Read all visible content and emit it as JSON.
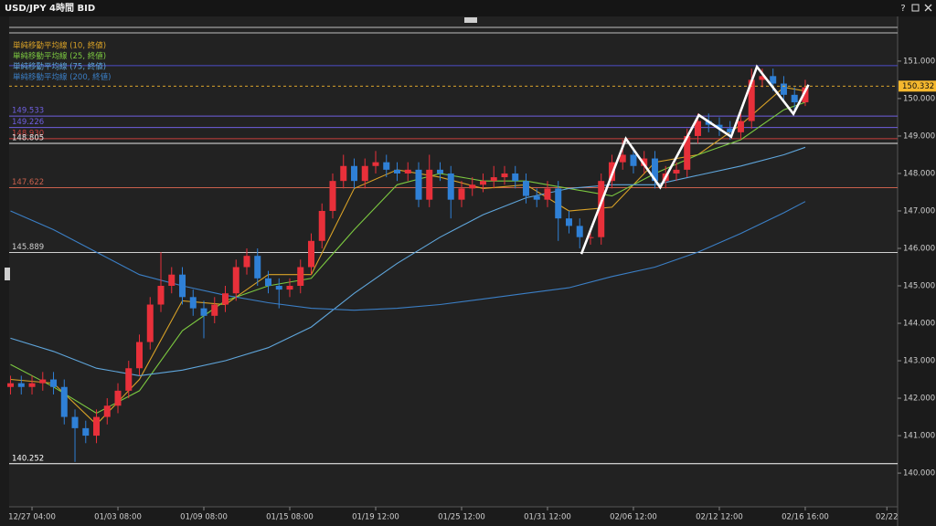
{
  "chart_data": {
    "type": "candlestick",
    "title": "USD/JPY 4時間 BID",
    "help": "?",
    "x": [
      0,
      1,
      2,
      3,
      4,
      5,
      6,
      7,
      8,
      9,
      10,
      11,
      12,
      13,
      14,
      15,
      16,
      17,
      18,
      19,
      20,
      21,
      22,
      23,
      24,
      25,
      26,
      27,
      28,
      29,
      30,
      31,
      32,
      33,
      34,
      35,
      36,
      37,
      38,
      39,
      40,
      41,
      42,
      43,
      44,
      45,
      46,
      47,
      48,
      49,
      50,
      51,
      52,
      53,
      54,
      55,
      56,
      57,
      58,
      59,
      60,
      61,
      62,
      63,
      64,
      65,
      66,
      67,
      68,
      69,
      70,
      71,
      72,
      73,
      74
    ],
    "open": [
      142.3,
      142.4,
      142.3,
      142.4,
      142.5,
      142.3,
      141.5,
      141.2,
      141.0,
      141.5,
      141.8,
      142.2,
      142.8,
      143.5,
      144.5,
      145.0,
      145.3,
      144.7,
      144.4,
      144.2,
      144.5,
      144.8,
      145.5,
      145.8,
      145.2,
      145.0,
      144.9,
      145.0,
      145.5,
      146.2,
      147.0,
      147.8,
      148.2,
      147.8,
      148.2,
      148.3,
      148.1,
      148.0,
      148.1,
      147.3,
      148.1,
      148.0,
      147.3,
      147.6,
      147.7,
      147.8,
      147.9,
      148.0,
      147.8,
      147.4,
      147.3,
      147.6,
      146.8,
      146.6,
      146.3,
      146.3,
      147.8,
      148.3,
      148.5,
      148.2,
      148.4,
      147.8,
      148.0,
      148.1,
      149.0,
      149.4,
      149.3,
      149.2,
      149.1,
      149.4,
      150.5,
      150.6,
      150.4,
      150.1,
      149.9
    ],
    "high": [
      142.6,
      142.6,
      142.6,
      142.7,
      142.7,
      142.5,
      141.7,
      141.4,
      141.7,
      142.0,
      142.4,
      143.0,
      143.7,
      144.7,
      145.9,
      145.5,
      145.5,
      144.9,
      144.6,
      144.7,
      145.0,
      145.7,
      146.0,
      146.0,
      145.4,
      145.2,
      145.2,
      145.7,
      146.4,
      147.2,
      148.0,
      148.5,
      148.4,
      148.4,
      148.6,
      148.5,
      148.3,
      148.3,
      148.3,
      148.5,
      148.3,
      148.2,
      147.8,
      147.9,
      148.0,
      148.2,
      148.2,
      148.2,
      148.0,
      147.6,
      147.8,
      147.8,
      147.0,
      146.8,
      146.5,
      148.0,
      148.5,
      148.9,
      148.7,
      148.6,
      148.6,
      148.2,
      148.3,
      149.2,
      149.6,
      149.6,
      149.5,
      149.4,
      149.6,
      150.8,
      150.8,
      150.8,
      150.6,
      150.3,
      150.5
    ],
    "low": [
      142.1,
      142.1,
      142.1,
      142.2,
      142.1,
      141.3,
      140.3,
      140.8,
      140.8,
      141.3,
      141.6,
      142.0,
      142.6,
      143.3,
      144.3,
      144.8,
      144.5,
      144.2,
      143.6,
      144.0,
      144.3,
      144.6,
      145.3,
      145.0,
      144.8,
      144.4,
      144.7,
      144.8,
      145.3,
      146.0,
      146.8,
      147.6,
      147.6,
      147.6,
      148.0,
      147.9,
      147.8,
      147.8,
      147.1,
      147.1,
      147.8,
      146.8,
      147.1,
      147.4,
      147.5,
      147.6,
      147.7,
      147.6,
      147.2,
      147.1,
      147.1,
      146.2,
      146.4,
      146.0,
      146.1,
      146.1,
      147.6,
      148.1,
      148.0,
      148.0,
      147.6,
      147.6,
      147.8,
      147.9,
      148.8,
      149.1,
      149.0,
      148.9,
      148.9,
      149.2,
      150.3,
      150.2,
      149.9,
      149.7,
      149.8
    ],
    "close": [
      142.4,
      142.3,
      142.4,
      142.5,
      142.3,
      141.5,
      141.2,
      141.0,
      141.5,
      141.8,
      142.2,
      142.8,
      143.5,
      144.5,
      145.0,
      145.3,
      144.7,
      144.4,
      144.2,
      144.5,
      144.8,
      145.5,
      145.8,
      145.2,
      145.0,
      144.9,
      145.0,
      145.5,
      146.2,
      147.0,
      147.8,
      148.2,
      147.8,
      148.2,
      148.3,
      148.1,
      148.0,
      148.1,
      147.3,
      148.1,
      148.0,
      147.3,
      147.6,
      147.7,
      147.8,
      147.9,
      148.0,
      147.8,
      147.4,
      147.3,
      147.6,
      146.8,
      146.6,
      146.3,
      146.3,
      147.8,
      148.3,
      148.5,
      148.2,
      148.4,
      147.8,
      148.0,
      148.1,
      149.0,
      149.4,
      149.3,
      149.2,
      149.1,
      149.4,
      150.5,
      150.6,
      150.4,
      150.1,
      149.9,
      150.3
    ],
    "up_color": "#e8303a",
    "down_color": "#2f80d6",
    "series": [
      {
        "name": "単純移動平均線 (10, 終値)",
        "color": "#d9a227",
        "x": [
          0,
          4,
          8,
          12,
          16,
          20,
          24,
          28,
          32,
          36,
          40,
          44,
          48,
          52,
          56,
          60,
          64,
          68,
          72,
          74
        ],
        "values": [
          142.5,
          142.4,
          141.3,
          142.5,
          144.6,
          144.5,
          145.3,
          145.3,
          147.6,
          148.1,
          147.9,
          147.6,
          147.7,
          147.0,
          147.1,
          148.3,
          148.5,
          149.3,
          150.3,
          150.2
        ]
      },
      {
        "name": "単純移動平均線 (25, 終値)",
        "color": "#7cc940",
        "x": [
          0,
          4,
          8,
          12,
          16,
          20,
          24,
          28,
          32,
          36,
          40,
          44,
          48,
          52,
          56,
          60,
          64,
          68,
          72,
          74
        ],
        "values": [
          142.9,
          142.3,
          141.6,
          142.2,
          143.8,
          144.6,
          145.0,
          145.2,
          146.5,
          147.7,
          148.0,
          147.8,
          147.8,
          147.6,
          147.4,
          148.0,
          148.5,
          148.9,
          149.7,
          149.9
        ]
      },
      {
        "name": "単純移動平均線 (75, 終値)",
        "color": "#5fa6dc",
        "x": [
          0,
          4,
          8,
          12,
          16,
          20,
          24,
          28,
          32,
          36,
          40,
          44,
          48,
          52,
          56,
          60,
          64,
          68,
          72,
          74
        ],
        "values": [
          143.6,
          143.25,
          142.8,
          142.6,
          142.75,
          143.0,
          143.35,
          143.9,
          144.8,
          145.6,
          146.3,
          146.9,
          147.35,
          147.6,
          147.7,
          147.7,
          147.95,
          148.2,
          148.5,
          148.7
        ]
      },
      {
        "name": "単純移動平均線 (200, 終値)",
        "color": "#3b7fc6",
        "x": [
          0,
          4,
          8,
          12,
          16,
          20,
          24,
          28,
          32,
          36,
          40,
          44,
          48,
          52,
          56,
          60,
          64,
          68,
          72,
          74
        ],
        "values": [
          147.0,
          146.5,
          145.9,
          145.3,
          145.0,
          144.75,
          144.55,
          144.4,
          144.35,
          144.4,
          144.5,
          144.65,
          144.8,
          144.95,
          145.25,
          145.5,
          145.9,
          146.4,
          146.95,
          147.25
        ]
      }
    ],
    "hlines": [
      {
        "value": 150.88,
        "color": "#4d4dc8"
      },
      {
        "value": 149.533,
        "label": "149.533",
        "color": "#6f5fe0"
      },
      {
        "value": 149.226,
        "label": "149.226",
        "color": "#6f5fe0"
      },
      {
        "value": 148.93,
        "label": "148.930",
        "color": "#c8403c"
      },
      {
        "value": 148.805,
        "label": "148.805",
        "color": "#e6e6e6"
      },
      {
        "value": 147.622,
        "label": "147.622",
        "color": "#c8604c"
      },
      {
        "value": 145.889,
        "label": "145.889",
        "color": "#d0d0d0"
      },
      {
        "value": 140.252,
        "label": "140.252",
        "color": "#ffffff"
      }
    ],
    "last_price": {
      "value": 150.332,
      "label": "150.332",
      "color": "#f5b82e"
    },
    "zigzag": {
      "x": [
        53.15,
        57.3,
        60.5,
        64.1,
        67.1,
        69.5,
        72.9,
        74.3
      ],
      "values": [
        145.85,
        148.93,
        147.63,
        149.56,
        148.98,
        150.85,
        149.59,
        150.37
      ],
      "color": "#ffffff"
    },
    "xlim": [
      -0.13,
      82.6
    ],
    "xticks": [
      {
        "value": 2,
        "label": "12/27 04:00"
      },
      {
        "value": 10,
        "label": "01/03 08:00"
      },
      {
        "value": 18,
        "label": "01/09 08:00"
      },
      {
        "value": 26,
        "label": "01/15 08:00"
      },
      {
        "value": 34,
        "label": "01/19 12:00"
      },
      {
        "value": 42,
        "label": "01/25 12:00"
      },
      {
        "value": 50,
        "label": "01/31 12:00"
      },
      {
        "value": 58,
        "label": "02/06 12:00"
      },
      {
        "value": 66,
        "label": "02/12 12:00"
      },
      {
        "value": 74,
        "label": "02/16 16:00"
      },
      {
        "value": 81.6,
        "label": "02/22"
      }
    ],
    "ylim": [
      139.1,
      151.9
    ],
    "yticks": [
      {
        "value": 140,
        "label": "140.000"
      },
      {
        "value": 141,
        "label": "141.000"
      },
      {
        "value": 142,
        "label": "142.000"
      },
      {
        "value": 143,
        "label": "143.000"
      },
      {
        "value": 144,
        "label": "144.000"
      },
      {
        "value": 145,
        "label": "145.000"
      },
      {
        "value": 146,
        "label": "146.000"
      },
      {
        "value": 147,
        "label": "147.000"
      },
      {
        "value": 148,
        "label": "148.000"
      },
      {
        "value": 149,
        "label": "149.000"
      },
      {
        "value": 150,
        "label": "150.000"
      },
      {
        "value": 151,
        "label": "151.000"
      }
    ],
    "grid": false
  }
}
